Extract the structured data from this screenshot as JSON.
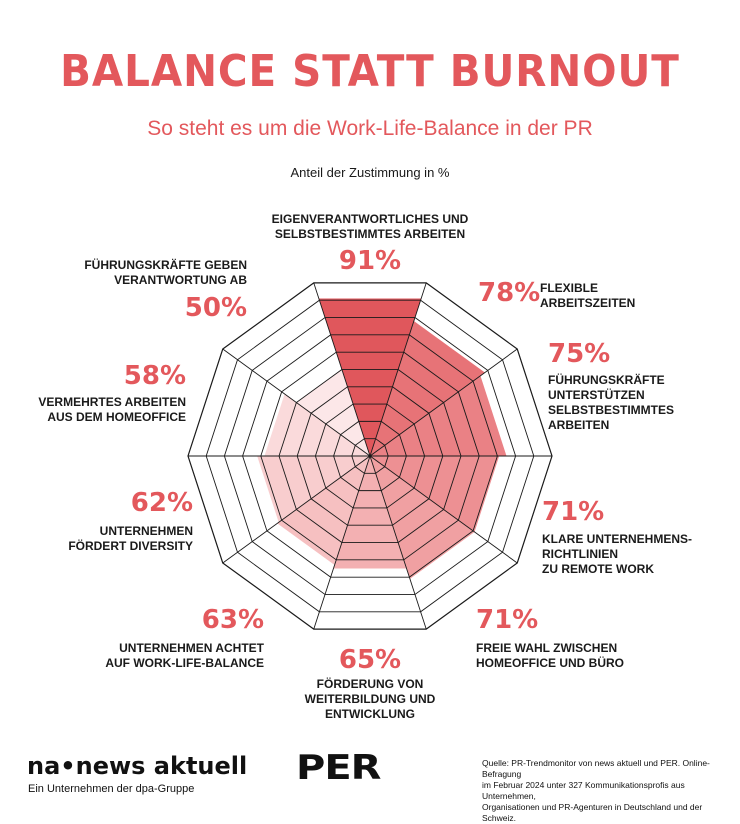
{
  "header": {
    "title": "BALANCE STATT BURNOUT",
    "subtitle": "So steht es um die Work-Life-Balance in der PR",
    "unit_note": "Anteil der Zustimmung in %"
  },
  "chart_data": {
    "type": "radar",
    "max": 100,
    "rings": 10,
    "categories": [
      "EIGENVERANTWORTLICHES UND SELBSTBESTIMMTES ARBEITEN",
      "FLEXIBLE ARBEITSZEITEN",
      "FÜHRUNGSKRÄFTE UNTERSTÜTZEN SELBSTBESTIMMTES ARBEITEN",
      "KLARE UNTERNEHMENS-RICHTLINIEN ZU REMOTE WORK",
      "FREIE WAHL ZWISCHEN HOMEOFFICE UND BÜRO",
      "FÖRDERUNG VON WEITERBILDUNG UND ENTWICKLUNG",
      "UNTERNEHMEN ACHTET AUF WORK-LIFE-BALANCE",
      "UNTERNEHMEN FÖRDERT DIVERSITY",
      "VERMEHRTES ARBEITEN AUS DEM HOMEOFFICE",
      "FÜHRUNGSKRÄFTE GEBEN VERANTWORTUNG AB"
    ],
    "values": [
      91,
      78,
      75,
      71,
      71,
      65,
      63,
      62,
      58,
      50
    ],
    "value_labels": [
      "91%",
      "78%",
      "75%",
      "71%",
      "71%",
      "65%",
      "63%",
      "62%",
      "58%",
      "50%"
    ],
    "colors": [
      "#e0575c",
      "#e77377",
      "#ea8185",
      "#ed9093",
      "#f0a0a2",
      "#f3b0b2",
      "#f6c0c1",
      "#f8cdce",
      "#fadadb",
      "#fce7e8"
    ]
  },
  "labels": {
    "c0": [
      "EIGENVERANTWORTLICHES UND",
      "SELBSTBESTIMMTES ARBEITEN"
    ],
    "c1": [
      "FLEXIBLE",
      "ARBEITSZEITEN"
    ],
    "c2": [
      "FÜHRUNGSKRÄFTE",
      "UNTERSTÜTZEN",
      "SELBSTBESTIMMTES",
      "ARBEITEN"
    ],
    "c3": [
      "KLARE UNTERNEHMENS-",
      "RICHTLINIEN",
      "ZU REMOTE WORK"
    ],
    "c4": [
      "FREIE WAHL ZWISCHEN",
      "HOMEOFFICE UND BÜRO"
    ],
    "c5": [
      "FÖRDERUNG VON",
      "WEITERBILDUNG UND",
      "ENTWICKLUNG"
    ],
    "c6": [
      "UNTERNEHMEN ACHTET",
      "AUF WORK-LIFE-BALANCE"
    ],
    "c7": [
      "UNTERNEHMEN",
      "FÖRDERT DIVERSITY"
    ],
    "c8": [
      "VERMEHRTES ARBEITEN",
      "AUS DEM HOMEOFFICE"
    ],
    "c9": [
      "FÜHRUNGSKRÄFTE GEBEN",
      "VERANTWORTUNG AB"
    ]
  },
  "footer": {
    "logo_na": "na•news aktuell",
    "logo_na_sub": "Ein Unternehmen der dpa-Gruppe",
    "logo_per": "PER",
    "source_lines": [
      "Quelle:  PR-Trendmonitor von news aktuell und PER. Online-Befragung",
      "im Februar 2024 unter 327 Kommunikationsprofis aus Unternehmen,",
      "Organisationen und PR-Agenturen in Deutschland und der Schweiz."
    ]
  }
}
